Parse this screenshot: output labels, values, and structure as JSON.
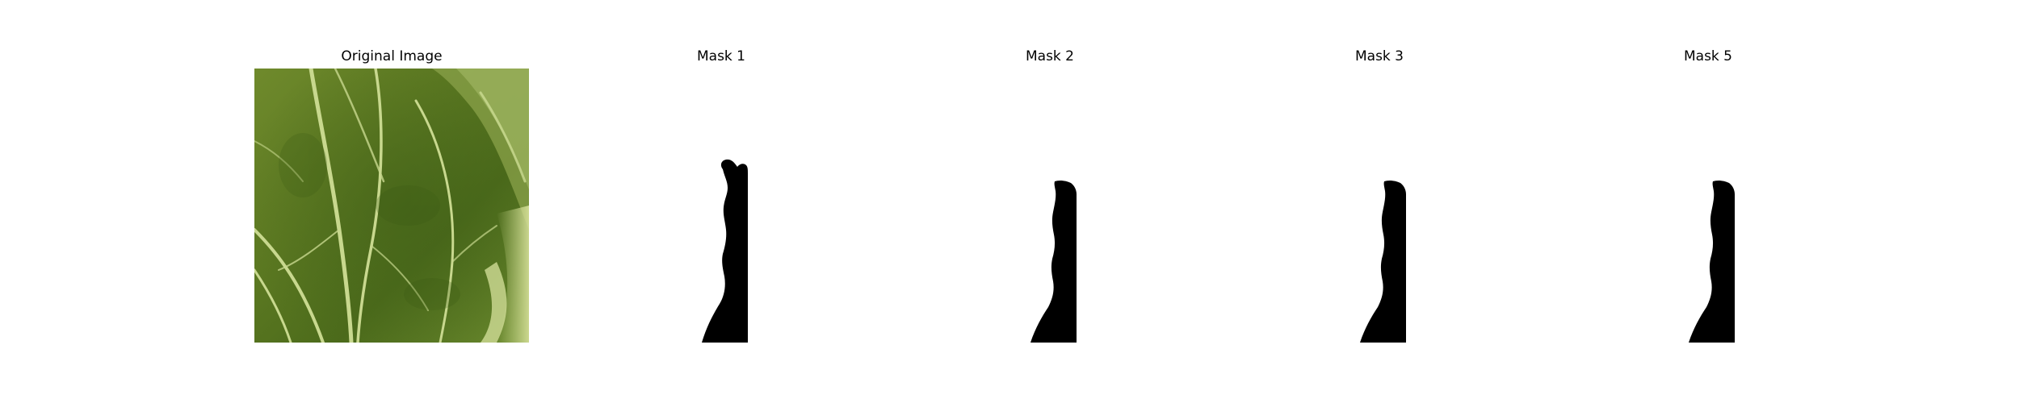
{
  "figure": {
    "panels": [
      {
        "title": "Original Image",
        "kind": "photo",
        "subject": "leaf-photo"
      },
      {
        "title": "Mask 1",
        "kind": "mask",
        "mask_color": "#000000"
      },
      {
        "title": "Mask 2",
        "kind": "mask",
        "mask_color": "#000000"
      },
      {
        "title": "Mask 3",
        "kind": "mask",
        "mask_color": "#000000"
      },
      {
        "title": "Mask 5",
        "kind": "mask",
        "mask_color": "#000000"
      }
    ]
  }
}
